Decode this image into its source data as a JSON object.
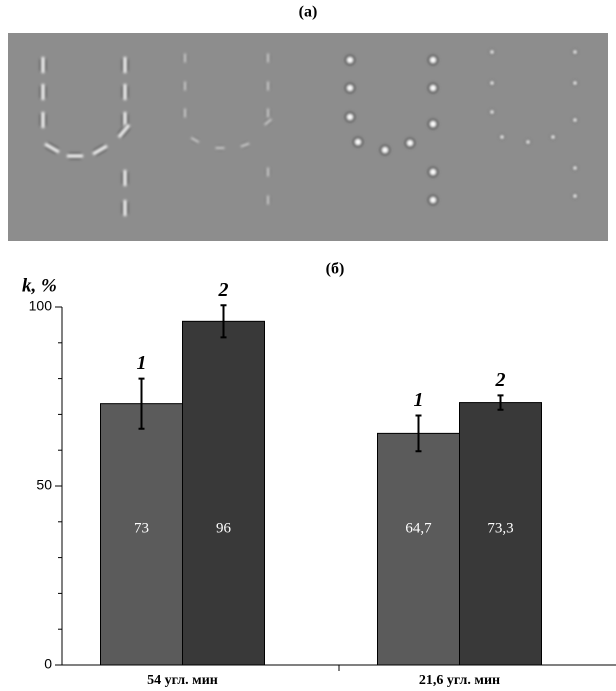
{
  "panel_a_label": "(а)",
  "chart_data": {
    "type": "bar",
    "title": "(б)",
    "y_label": "k, %",
    "categories": [
      "54 угл. мин",
      "21,6 угл. мин"
    ],
    "series": [
      {
        "name": "1",
        "color": "#5b5b5b",
        "values": [
          73,
          64.7
        ],
        "value_labels": [
          "73",
          "64,7"
        ],
        "errors": [
          7,
          5
        ]
      },
      {
        "name": "2",
        "color": "#393939",
        "values": [
          96,
          73.3
        ],
        "value_labels": [
          "96",
          "73,3"
        ],
        "errors": [
          4.5,
          2
        ]
      }
    ],
    "ylim": [
      0,
      100
    ],
    "yticks": [
      0,
      50,
      100
    ],
    "minor_yticks": [
      10,
      20,
      30,
      40,
      60,
      70,
      80,
      90
    ]
  }
}
